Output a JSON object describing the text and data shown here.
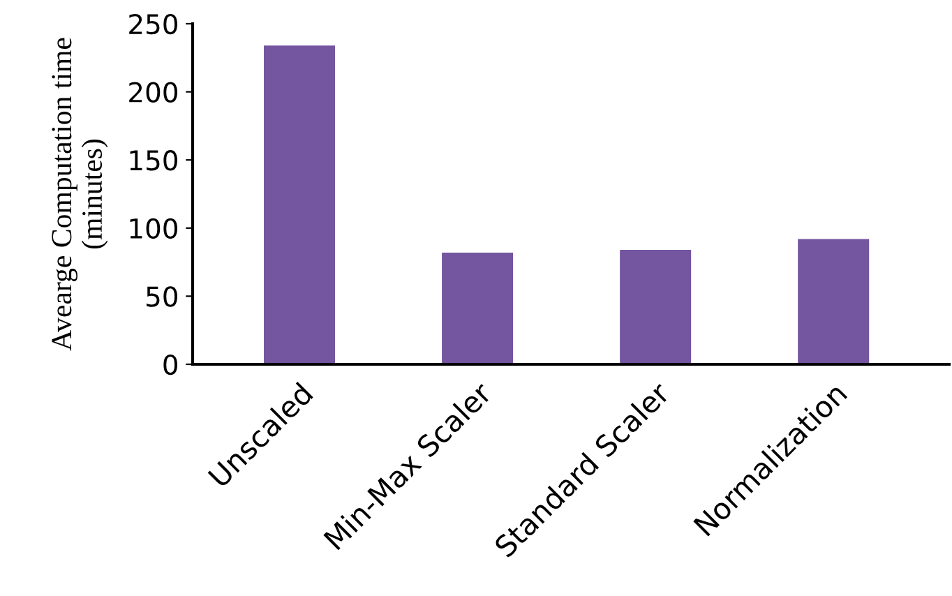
{
  "chart_data": {
    "type": "bar",
    "categories": [
      "Unscaled",
      "Min-Max Scaler",
      "Standard Scaler",
      "Normalization"
    ],
    "values": [
      234,
      82,
      84,
      92
    ],
    "color": "#7455a0",
    "ylabel": "Avearge Computation time\n(minutes)",
    "ylim": [
      0,
      250
    ],
    "yticks": [
      0,
      50,
      100,
      150,
      200,
      250
    ],
    "grid": false,
    "legend": false
  }
}
